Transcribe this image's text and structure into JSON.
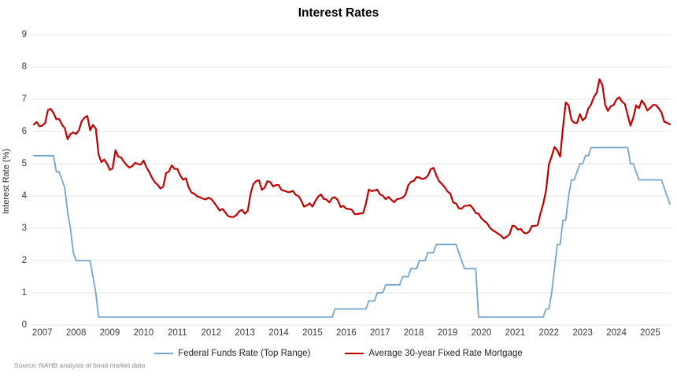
{
  "title": "Interest Rates",
  "y_axis_title": "Interest Rate (%)",
  "source_note": "Source: NAHB analysis of bond market data",
  "chart_data": {
    "type": "line",
    "title": "Interest Rates",
    "xlabel": "",
    "ylabel": "Interest Rate (%)",
    "ylim": [
      0,
      9
    ],
    "y_ticks": [
      0,
      1,
      2,
      3,
      4,
      5,
      6,
      7,
      8,
      9
    ],
    "x_ticks": [
      "2007",
      "2008",
      "2009",
      "2010",
      "2011",
      "2012",
      "2013",
      "2014",
      "2015",
      "2016",
      "2017",
      "2018",
      "2019",
      "2020",
      "2021",
      "2022",
      "2023",
      "2024",
      "2025"
    ],
    "x_unit": "monthly",
    "x_range": "Jan 2007 - Nov 2025",
    "grid": "horizontal",
    "legend_position": "bottom",
    "series": [
      {
        "name": "Federal Funds Rate (Top Range)",
        "color": "#74a5cd",
        "values": [
          5.25,
          5.25,
          5.25,
          5.25,
          5.25,
          5.25,
          5.25,
          5.25,
          4.75,
          4.75,
          4.5,
          4.25,
          3.5,
          3.0,
          2.25,
          2.0,
          2.0,
          2.0,
          2.0,
          2.0,
          2.0,
          1.5,
          1.0,
          0.25,
          0.25,
          0.25,
          0.25,
          0.25,
          0.25,
          0.25,
          0.25,
          0.25,
          0.25,
          0.25,
          0.25,
          0.25,
          0.25,
          0.25,
          0.25,
          0.25,
          0.25,
          0.25,
          0.25,
          0.25,
          0.25,
          0.25,
          0.25,
          0.25,
          0.25,
          0.25,
          0.25,
          0.25,
          0.25,
          0.25,
          0.25,
          0.25,
          0.25,
          0.25,
          0.25,
          0.25,
          0.25,
          0.25,
          0.25,
          0.25,
          0.25,
          0.25,
          0.25,
          0.25,
          0.25,
          0.25,
          0.25,
          0.25,
          0.25,
          0.25,
          0.25,
          0.25,
          0.25,
          0.25,
          0.25,
          0.25,
          0.25,
          0.25,
          0.25,
          0.25,
          0.25,
          0.25,
          0.25,
          0.25,
          0.25,
          0.25,
          0.25,
          0.25,
          0.25,
          0.25,
          0.25,
          0.25,
          0.25,
          0.25,
          0.25,
          0.25,
          0.25,
          0.25,
          0.25,
          0.25,
          0.25,
          0.25,
          0.25,
          0.5,
          0.5,
          0.5,
          0.5,
          0.5,
          0.5,
          0.5,
          0.5,
          0.5,
          0.5,
          0.5,
          0.5,
          0.75,
          0.75,
          0.75,
          1.0,
          1.0,
          1.0,
          1.25,
          1.25,
          1.25,
          1.25,
          1.25,
          1.25,
          1.5,
          1.5,
          1.5,
          1.75,
          1.75,
          1.75,
          2.0,
          2.0,
          2.0,
          2.25,
          2.25,
          2.25,
          2.5,
          2.5,
          2.5,
          2.5,
          2.5,
          2.5,
          2.5,
          2.5,
          2.25,
          2.0,
          1.75,
          1.75,
          1.75,
          1.75,
          1.75,
          0.25,
          0.25,
          0.25,
          0.25,
          0.25,
          0.25,
          0.25,
          0.25,
          0.25,
          0.25,
          0.25,
          0.25,
          0.25,
          0.25,
          0.25,
          0.25,
          0.25,
          0.25,
          0.25,
          0.25,
          0.25,
          0.25,
          0.25,
          0.25,
          0.5,
          0.5,
          1.0,
          1.75,
          2.5,
          2.5,
          3.25,
          3.25,
          4.0,
          4.5,
          4.5,
          4.75,
          5.0,
          5.0,
          5.25,
          5.25,
          5.5,
          5.5,
          5.5,
          5.5,
          5.5,
          5.5,
          5.5,
          5.5,
          5.5,
          5.5,
          5.5,
          5.5,
          5.5,
          5.5,
          5.0,
          5.0,
          4.75,
          4.5,
          4.5,
          4.5,
          4.5,
          4.5,
          4.5,
          4.5,
          4.5,
          4.5,
          4.25,
          4.0,
          3.75
        ]
      },
      {
        "name": "Average 30-year Fixed Rate Mortgage",
        "color": "#c00000",
        "values": [
          6.22,
          6.29,
          6.16,
          6.18,
          6.26,
          6.66,
          6.7,
          6.57,
          6.38,
          6.38,
          6.21,
          6.1,
          5.76,
          5.92,
          5.97,
          5.92,
          6.04,
          6.32,
          6.43,
          6.48,
          6.04,
          6.2,
          6.09,
          5.29,
          5.05,
          5.13,
          5.0,
          4.81,
          4.86,
          5.42,
          5.22,
          5.19,
          5.06,
          4.95,
          4.88,
          4.93,
          5.03,
          4.99,
          4.97,
          5.1,
          4.89,
          4.74,
          4.56,
          4.43,
          4.35,
          4.23,
          4.3,
          4.71,
          4.76,
          4.95,
          4.84,
          4.84,
          4.64,
          4.51,
          4.55,
          4.27,
          4.11,
          4.07,
          3.99,
          3.96,
          3.92,
          3.89,
          3.95,
          3.91,
          3.8,
          3.68,
          3.55,
          3.6,
          3.5,
          3.38,
          3.35,
          3.35,
          3.41,
          3.53,
          3.57,
          3.45,
          3.54,
          4.07,
          4.37,
          4.46,
          4.49,
          4.19,
          4.26,
          4.46,
          4.43,
          4.3,
          4.34,
          4.34,
          4.19,
          4.16,
          4.13,
          4.12,
          4.16,
          4.04,
          4.0,
          3.86,
          3.67,
          3.71,
          3.77,
          3.67,
          3.84,
          3.98,
          4.05,
          3.91,
          3.89,
          3.8,
          3.94,
          3.96,
          3.87,
          3.66,
          3.69,
          3.61,
          3.6,
          3.57,
          3.44,
          3.44,
          3.46,
          3.47,
          3.77,
          4.2,
          4.15,
          4.17,
          4.2,
          4.05,
          4.01,
          3.9,
          3.97,
          3.88,
          3.81,
          3.9,
          3.92,
          3.95,
          4.03,
          4.33,
          4.44,
          4.47,
          4.59,
          4.57,
          4.53,
          4.55,
          4.63,
          4.83,
          4.87,
          4.64,
          4.46,
          4.37,
          4.27,
          4.14,
          4.07,
          3.8,
          3.77,
          3.62,
          3.61,
          3.69,
          3.7,
          3.72,
          3.62,
          3.47,
          3.45,
          3.31,
          3.23,
          3.16,
          3.02,
          2.94,
          2.89,
          2.83,
          2.77,
          2.68,
          2.74,
          2.81,
          3.08,
          3.06,
          2.96,
          2.98,
          2.87,
          2.84,
          2.9,
          3.07,
          3.07,
          3.1,
          3.45,
          3.76,
          4.17,
          4.98,
          5.23,
          5.52,
          5.41,
          5.22,
          6.11,
          6.9,
          6.81,
          6.36,
          6.27,
          6.26,
          6.54,
          6.34,
          6.43,
          6.71,
          6.84,
          7.07,
          7.2,
          7.62,
          7.44,
          6.82,
          6.64,
          6.78,
          6.82,
          6.99,
          7.06,
          6.92,
          6.85,
          6.5,
          6.18,
          6.43,
          6.81,
          6.72,
          6.96,
          6.84,
          6.65,
          6.73,
          6.82,
          6.82,
          6.72,
          6.59,
          6.3,
          6.27,
          6.22
        ]
      }
    ]
  }
}
